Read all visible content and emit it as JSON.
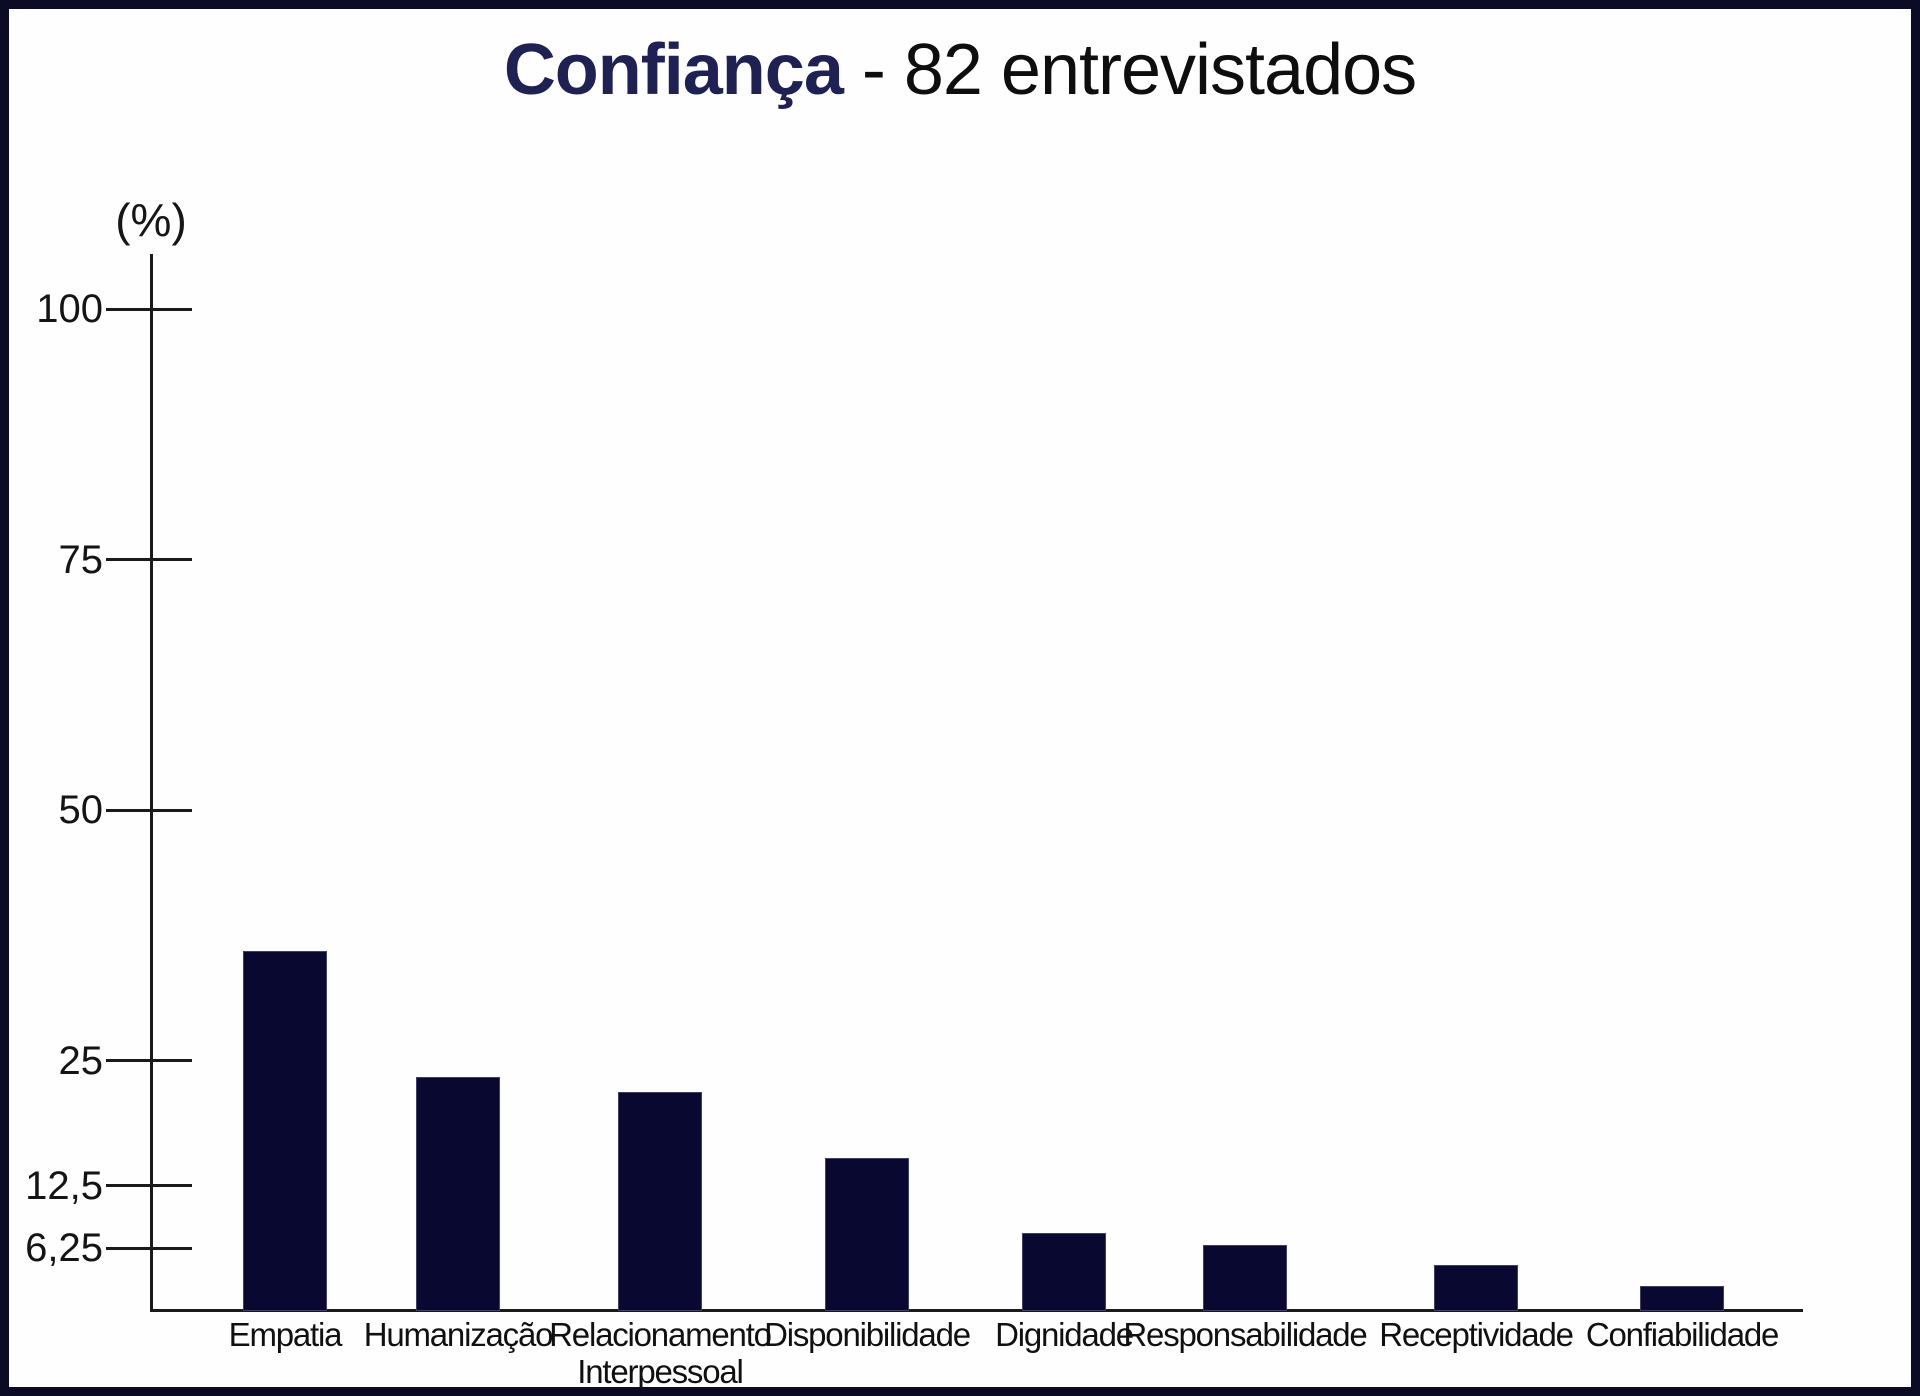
{
  "title": {
    "accent": "Confiança",
    "rest": " - 82 entrevistados"
  },
  "y_axis": {
    "unit_label": "(%)"
  },
  "chart_data": {
    "type": "bar",
    "title": "Confiança - 82 entrevistados",
    "subtitle": "",
    "xlabel": "",
    "ylabel": "(%)",
    "ylim": [
      0,
      100
    ],
    "grid": false,
    "legend": null,
    "bar_color": "#080830",
    "categories": [
      "Empatia",
      "Humanização",
      "Relacionamento Interpessoal",
      "Disponibilidade",
      "Dignidade",
      "Responsabilidade",
      "Receptividade",
      "Confiabilidade"
    ],
    "category_lines": [
      [
        "Empatia"
      ],
      [
        "Humanização"
      ],
      [
        "Relacionamento",
        "Interpessoal"
      ],
      [
        "Disponibilidade"
      ],
      [
        "Dignidade"
      ],
      [
        "Responsabilidade"
      ],
      [
        "Receptividade"
      ],
      [
        "Confiabilidade"
      ]
    ],
    "values": [
      35.9,
      23.4,
      21.9,
      15.3,
      7.8,
      6.6,
      4.6,
      2.5
    ],
    "yticks": [
      100,
      75,
      50,
      25,
      12.5,
      6.25
    ],
    "ytick_labels": [
      "100",
      "75",
      "50",
      "25",
      "12,5",
      "6,25"
    ]
  }
}
